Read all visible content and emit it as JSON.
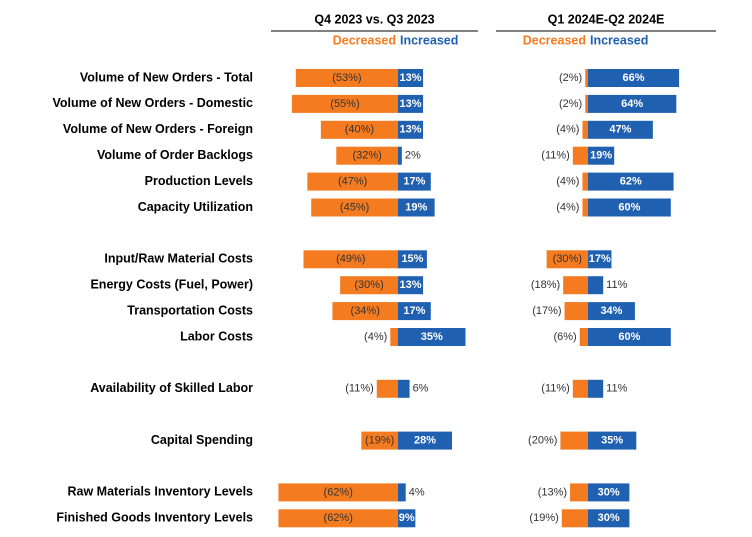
{
  "chart_data": {
    "type": "diverging_bar",
    "categories": [
      "Volume of New Orders - Total",
      "Volume of New Orders - Domestic",
      "Volume of New Orders - Foreign",
      "Volume of Order Backlogs",
      "Production Levels",
      "Capacity Utilization",
      null,
      "Input/Raw Material Costs",
      "Energy Costs (Fuel, Power)",
      "Transportation Costs",
      "Labor Costs",
      null,
      "Availability of Skilled Labor",
      null,
      "Capital Spending",
      null,
      "Raw Materials Inventory Levels",
      "Finished Goods Inventory Levels"
    ],
    "panels": [
      {
        "title": "Q4 2023 vs. Q3 2023",
        "xlim": [
          -70,
          70
        ],
        "series": [
          {
            "name": "Decreased",
            "color": "#f47b20",
            "values": [
              -53,
              -55,
              -40,
              -32,
              -47,
              -45,
              null,
              -49,
              -30,
              -34,
              -4,
              null,
              -11,
              null,
              -19,
              null,
              -62,
              -62
            ],
            "value_labels": [
              "(53%)",
              "(55%)",
              "(40%)",
              "(32%)",
              "(47%)",
              "(45%)",
              null,
              "(49%)",
              "(30%)",
              "(34%)",
              "(4%)",
              null,
              "(11%)",
              null,
              "(19%)",
              null,
              "(62%)",
              "(62%)"
            ]
          },
          {
            "name": "Increased",
            "color": "#2060b0",
            "values": [
              13,
              13,
              13,
              2,
              17,
              19,
              null,
              15,
              13,
              17,
              35,
              null,
              6,
              null,
              28,
              null,
              4,
              9
            ],
            "value_labels": [
              "13%",
              "13%",
              "13%",
              "2%",
              "17%",
              "19%",
              null,
              "15%",
              "13%",
              "17%",
              "35%",
              null,
              "6%",
              null,
              "28%",
              null,
              "4%",
              "9%"
            ]
          }
        ]
      },
      {
        "title": "Q1 2024E-Q2 2024E",
        "xlim": [
          -100,
          100
        ],
        "series": [
          {
            "name": "Decreased",
            "color": "#f47b20",
            "values": [
              -2,
              -2,
              -4,
              -11,
              -4,
              -4,
              null,
              -30,
              -18,
              -17,
              -6,
              null,
              -11,
              null,
              -20,
              null,
              -13,
              -19
            ],
            "value_labels": [
              "(2%)",
              "(2%)",
              "(4%)",
              "(11%)",
              "(4%)",
              "(4%)",
              null,
              "(30%)",
              "(18%)",
              "(17%)",
              "(6%)",
              null,
              "(11%)",
              null,
              "(20%)",
              null,
              "(13%)",
              "(19%)"
            ]
          },
          {
            "name": "Increased",
            "color": "#2060b0",
            "values": [
              66,
              64,
              47,
              19,
              62,
              60,
              null,
              17,
              11,
              34,
              60,
              null,
              11,
              null,
              35,
              null,
              30,
              30
            ],
            "value_labels": [
              "66%",
              "64%",
              "47%",
              "19%",
              "62%",
              "60%",
              null,
              "17%",
              "11%",
              "34%",
              "60%",
              null,
              "11%",
              null,
              "35%",
              null,
              "30%",
              "30%"
            ]
          }
        ]
      }
    ]
  }
}
